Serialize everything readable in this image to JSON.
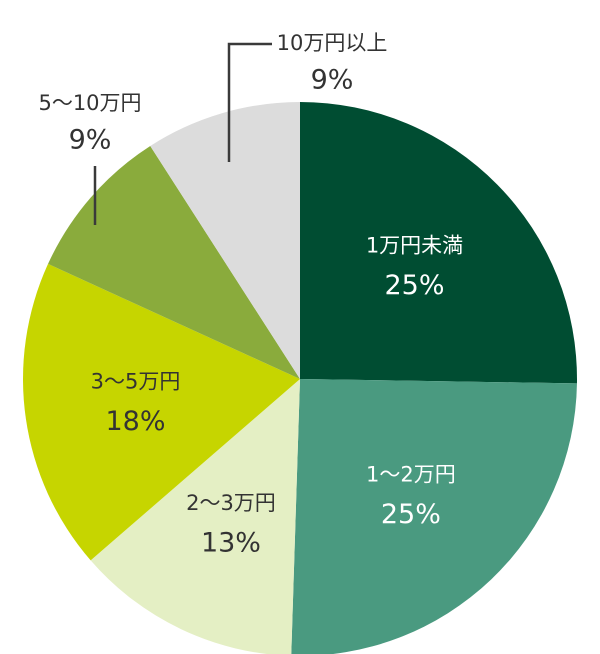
{
  "chart_data": {
    "type": "pie",
    "title": "",
    "unit": "%",
    "slices": [
      {
        "label": "1万円未満",
        "value": 25,
        "value_text": "25%",
        "color": "#004d32",
        "text_color": "#ffffff"
      },
      {
        "label": "1〜2万円",
        "value": 25,
        "value_text": "25%",
        "color": "#4a9a80",
        "text_color": "#ffffff"
      },
      {
        "label": "2〜3万円",
        "value": 13,
        "value_text": "13%",
        "color": "#e4efc4",
        "text_color": "#333333"
      },
      {
        "label": "3〜5万円",
        "value": 18,
        "value_text": "18%",
        "color": "#c6d500",
        "text_color": "#333333"
      },
      {
        "label": "5〜10万円",
        "value": 9,
        "value_text": "9%",
        "color": "#8aab3c",
        "text_color": "#333333",
        "outside": true
      },
      {
        "label": "10万円以上",
        "value": 9,
        "value_text": "9%",
        "color": "#dcdcdc",
        "text_color": "#333333",
        "outside": true
      }
    ],
    "legend": "none",
    "label_style": "inside labels; small slices labeled outside with leader lines"
  }
}
